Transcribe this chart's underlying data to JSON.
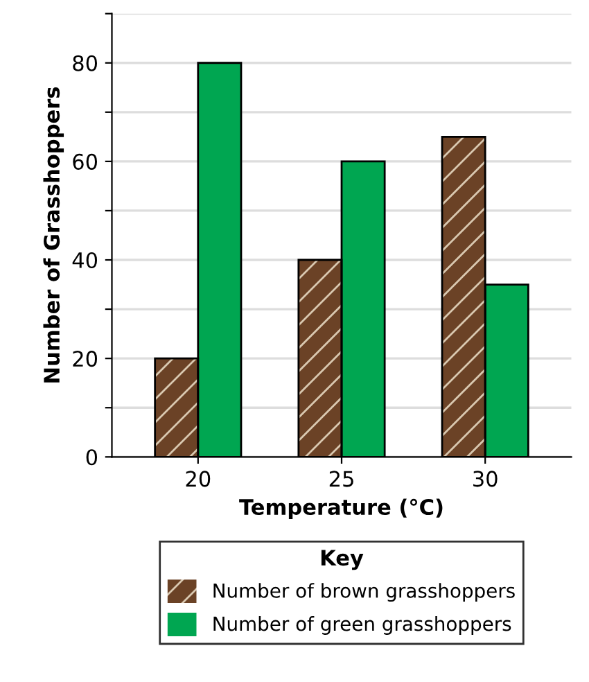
{
  "chart_data": {
    "type": "bar",
    "xlabel": "Temperature (°C)",
    "ylabel": "Number of Grasshoppers",
    "legend_title": "Key",
    "categories": [
      "20",
      "25",
      "30"
    ],
    "series": [
      {
        "name": "Number of brown grasshoppers",
        "color": "#6b4226",
        "values": [
          20,
          40,
          65
        ]
      },
      {
        "name": "Number of green grasshoppers",
        "color": "#00a651",
        "values": [
          80,
          60,
          35
        ]
      }
    ],
    "ylim": [
      0,
      90
    ],
    "yticks": [
      0,
      {
        "value": 10,
        "label": null
      },
      20,
      {
        "value": 30,
        "label": null
      },
      40,
      {
        "value": 50,
        "label": null
      },
      60,
      {
        "value": 70,
        "label": null
      },
      80,
      {
        "value": 90,
        "label": null
      }
    ],
    "grid": "y",
    "legend": "bottom"
  }
}
